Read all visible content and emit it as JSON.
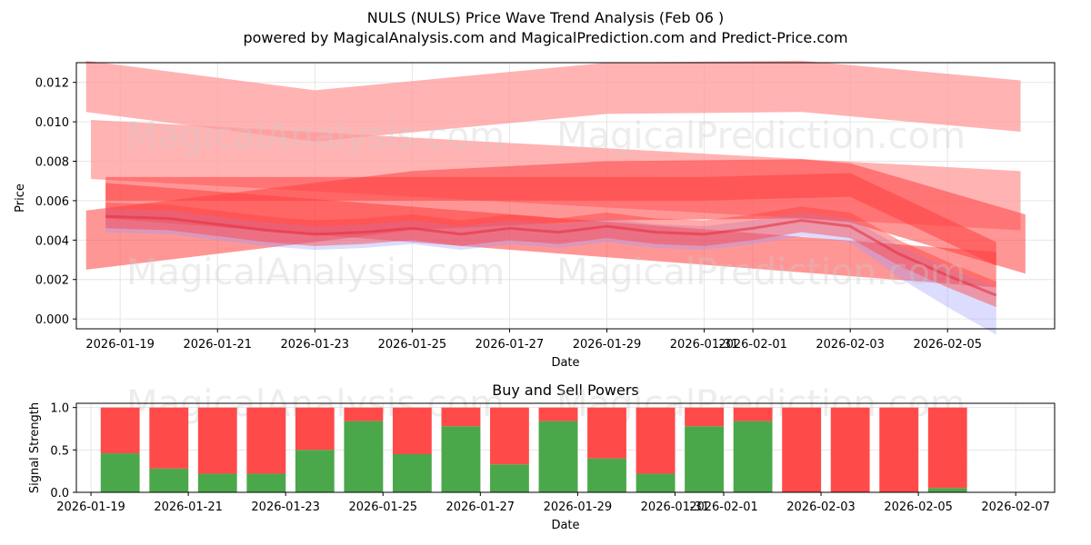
{
  "watermarks": [
    "MagicalAnalysis.com",
    "MagicalPrediction.com"
  ],
  "chart_data": [
    {
      "type": "area",
      "title": "NULS (NULS) Price Wave Trend Analysis (Feb 06 )",
      "subtitle": "powered by MagicalAnalysis.com and MagicalPrediction.com and Predict-Price.com",
      "xlabel": "Date",
      "ylabel": "Price",
      "xlim_days": [
        -0.9,
        19.2
      ],
      "ylim": [
        -0.0005,
        0.013
      ],
      "x_origin_date": "2026-01-19",
      "x_tick_labels": [
        "2026-01-19",
        "2026-01-21",
        "2026-01-23",
        "2026-01-25",
        "2026-01-27",
        "2026-01-29",
        "2026-01-31",
        "2026-02-01",
        "2026-02-03",
        "2026-02-05"
      ],
      "x_tick_days": [
        0,
        2,
        4,
        6,
        8,
        10,
        12,
        13,
        15,
        17
      ],
      "y_tick_labels": [
        "0.000",
        "0.002",
        "0.004",
        "0.006",
        "0.008",
        "0.010",
        "0.012"
      ],
      "y_ticks": [
        0,
        0.002,
        0.004,
        0.006,
        0.008,
        0.01,
        0.012
      ],
      "grid": true,
      "colors": {
        "band_light": "#ff9a9a",
        "band_dark": "#ff4040",
        "line": "#e83040",
        "blue_band": "#9a9aff"
      },
      "series": [
        {
          "name": "upper wide band",
          "x": [
            -0.7,
            4,
            10,
            14,
            18.5
          ],
          "values": [
            0.0118,
            0.0103,
            0.0117,
            0.0118,
            0.0108
          ],
          "half_width": 0.0013
        },
        {
          "name": "second wide band",
          "x": [
            -0.6,
            18.5
          ],
          "values": [
            0.0086,
            0.006
          ],
          "half_width": 0.0015
        },
        {
          "name": "rising band",
          "x": [
            -0.7,
            6,
            10,
            14,
            15,
            18.6
          ],
          "values": [
            0.004,
            0.006,
            0.0065,
            0.0066,
            0.0064,
            0.0038
          ],
          "half_width": 0.0015
        },
        {
          "name": "declining band",
          "x": [
            -0.3,
            18.0
          ],
          "values": [
            0.006,
            0.0025
          ],
          "half_width": 0.0009
        },
        {
          "name": "mid band",
          "x": [
            -0.3,
            6,
            12,
            15,
            18.0
          ],
          "values": [
            0.0066,
            0.0066,
            0.0066,
            0.0068,
            0.0033
          ],
          "half_width": 0.0006
        },
        {
          "name": "price",
          "x": [
            -0.3,
            1,
            3,
            4,
            5,
            6,
            7,
            8,
            9,
            10,
            11,
            12,
            13,
            14,
            15,
            16,
            17,
            18.0
          ],
          "values": [
            0.0052,
            0.0051,
            0.0045,
            0.0043,
            0.0044,
            0.0046,
            0.0043,
            0.0046,
            0.0044,
            0.0047,
            0.0044,
            0.0043,
            0.0046,
            0.005,
            0.0047,
            0.0033,
            0.0022,
            0.0012
          ]
        }
      ]
    },
    {
      "type": "bar",
      "title": "Buy and Sell Powers",
      "xlabel": "Date",
      "ylabel": "Signal Strength",
      "ylim": [
        0,
        1.05
      ],
      "xlim_days": [
        -0.9,
        19.2
      ],
      "x_tick_labels": [
        "2026-01-19",
        "2026-01-21",
        "2026-01-23",
        "2026-01-25",
        "2026-01-27",
        "2026-01-29",
        "2026-01-31",
        "2026-02-01",
        "2026-02-03",
        "2026-02-05",
        "2026-02-07"
      ],
      "x_tick_days": [
        -0.6,
        1.4,
        3.4,
        5.4,
        7.4,
        9.4,
        11.4,
        12.4,
        14.4,
        16.4,
        18.4
      ],
      "y_tick_labels": [
        "0.0",
        "0.5",
        "1.0"
      ],
      "y_ticks": [
        0,
        0.5,
        1.0
      ],
      "categories": [
        "2026-01-20",
        "2026-01-21",
        "2026-01-22",
        "2026-01-23",
        "2026-01-24",
        "2026-01-25",
        "2026-01-26",
        "2026-01-27",
        "2026-01-28",
        "2026-01-29",
        "2026-01-30",
        "2026-01-31",
        "2026-02-01",
        "2026-02-02",
        "2026-02-03",
        "2026-02-04",
        "2026-02-05",
        "2026-02-06"
      ],
      "series": [
        {
          "name": "Buy",
          "color": "#4aa84a",
          "values": [
            0.46,
            0.28,
            0.22,
            0.22,
            0.5,
            0.84,
            0.45,
            0.78,
            0.33,
            0.84,
            0.4,
            0.22,
            0.78,
            0.84,
            0.0,
            0.0,
            0.0,
            0.05
          ]
        },
        {
          "name": "Sell",
          "color": "#ff4a4a",
          "values": [
            0.54,
            0.72,
            0.78,
            0.78,
            0.5,
            0.16,
            0.55,
            0.22,
            0.67,
            0.16,
            0.6,
            0.78,
            0.22,
            0.16,
            1.0,
            1.0,
            1.0,
            0.95
          ]
        }
      ]
    }
  ]
}
